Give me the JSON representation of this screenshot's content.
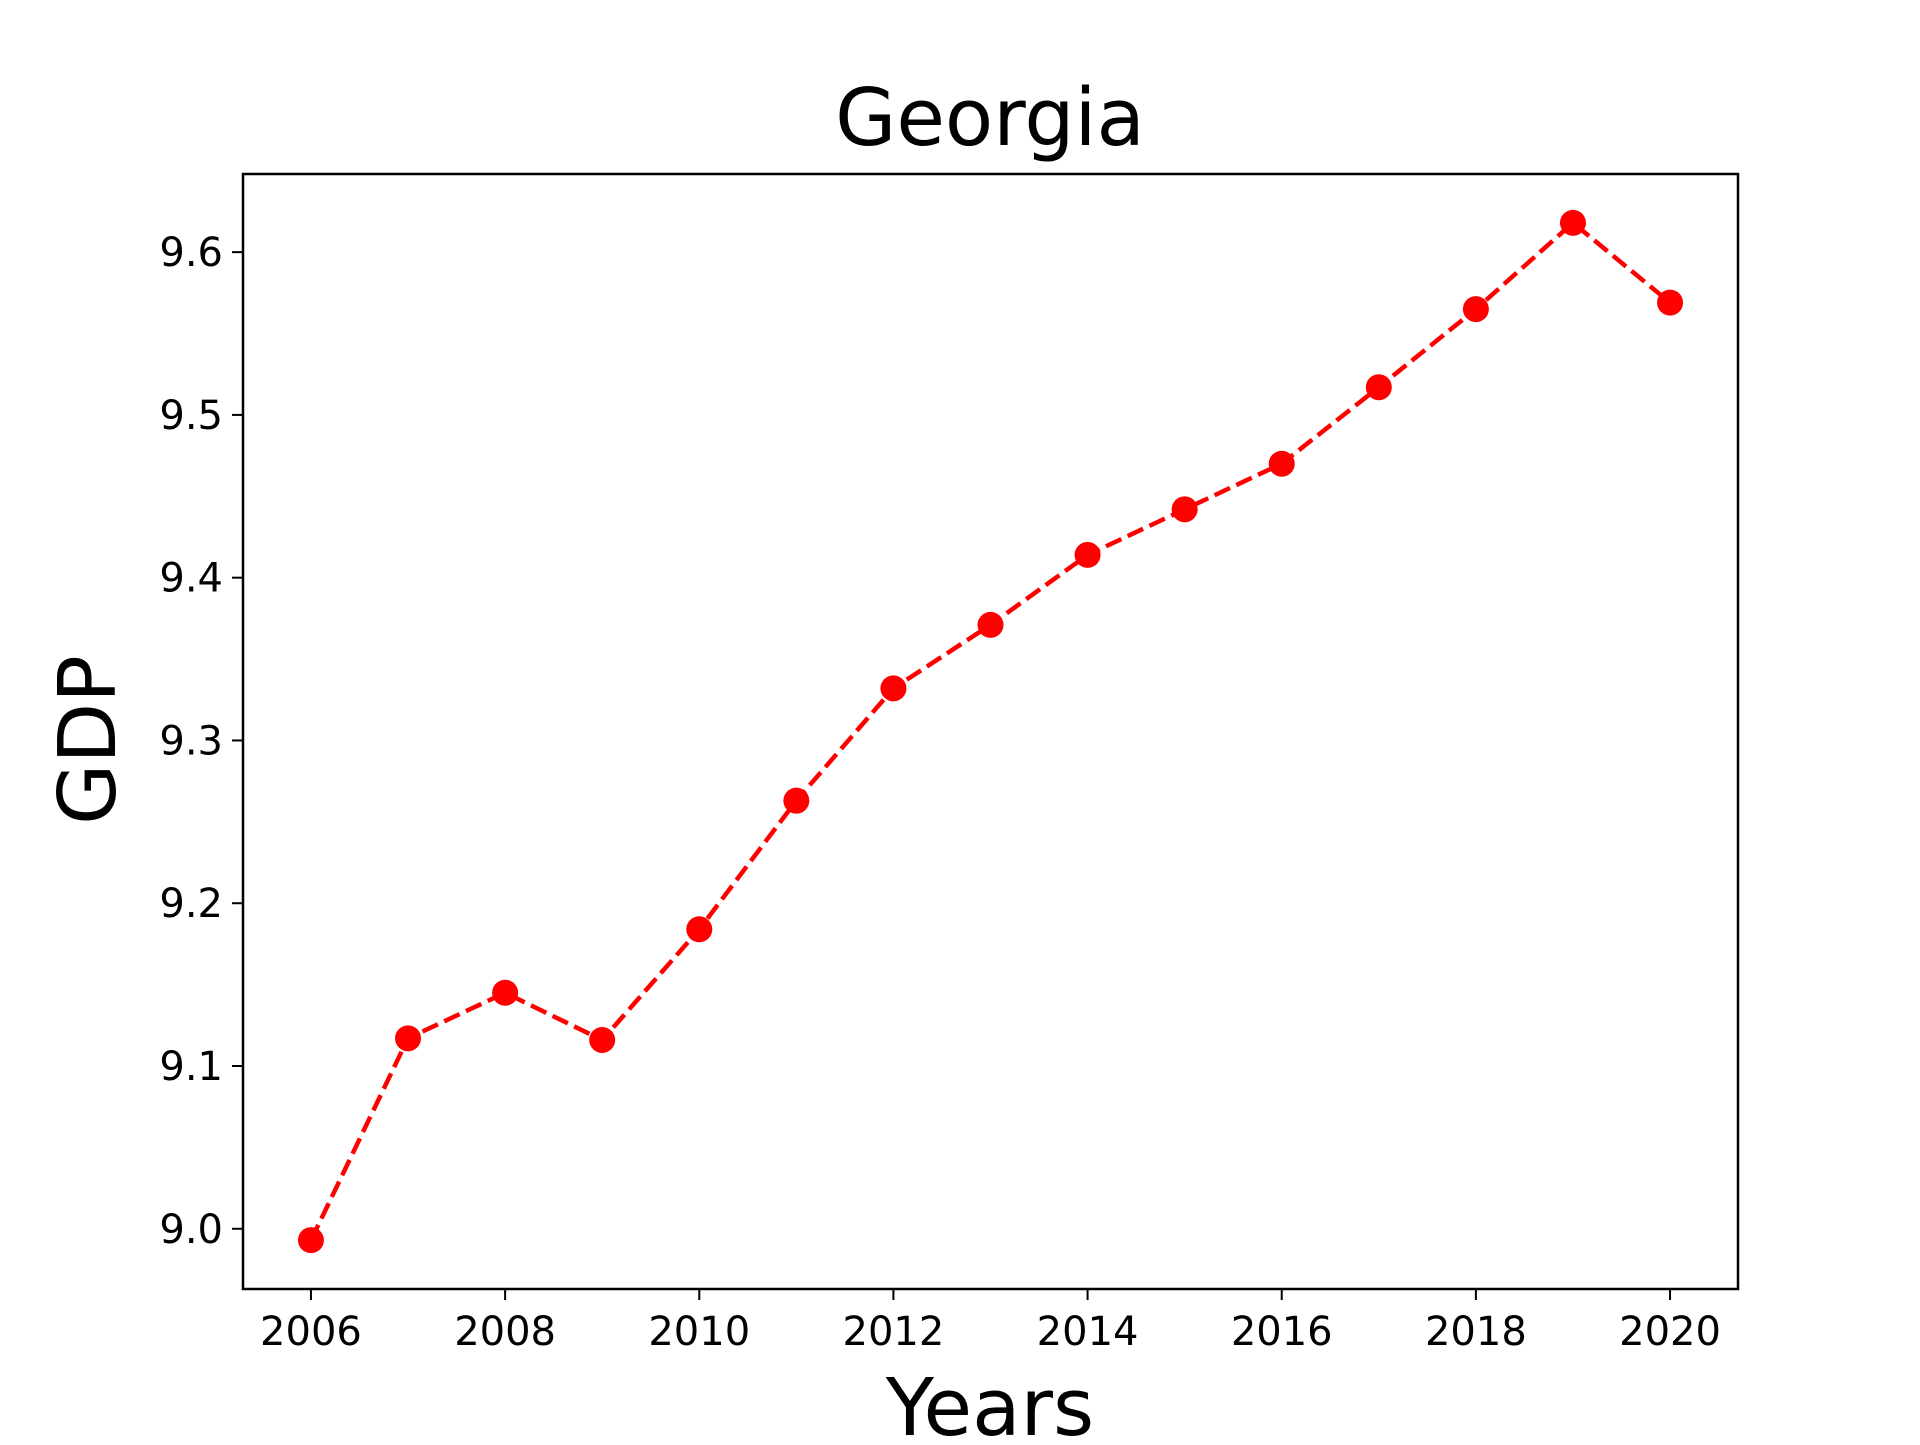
{
  "chart_data": {
    "type": "line",
    "title": "Georgia",
    "xlabel": "Years",
    "ylabel": "GDP",
    "x": [
      2006,
      2007,
      2008,
      2009,
      2010,
      2011,
      2012,
      2013,
      2014,
      2015,
      2016,
      2017,
      2018,
      2019,
      2020
    ],
    "series": [
      {
        "values": [
          8.993,
          9.117,
          9.145,
          9.116,
          9.184,
          9.263,
          9.332,
          9.371,
          9.414,
          9.442,
          9.47,
          9.517,
          9.565,
          9.618,
          9.569
        ],
        "color": "#ff0000",
        "line_style": "dashed",
        "marker": "circle"
      }
    ],
    "xlim": [
      2005.3,
      2020.7
    ],
    "ylim": [
      8.963,
      9.648
    ],
    "xticks": [
      2006,
      2008,
      2010,
      2012,
      2014,
      2016,
      2018,
      2020
    ],
    "xtick_labels": [
      "2006",
      "2008",
      "2010",
      "2012",
      "2014",
      "2016",
      "2018",
      "2020"
    ],
    "yticks": [
      9.0,
      9.1,
      9.2,
      9.3,
      9.4,
      9.5,
      9.6
    ],
    "ytick_labels": [
      "9.0",
      "9.1",
      "9.2",
      "9.3",
      "9.4",
      "9.5",
      "9.6"
    ],
    "grid": false,
    "legend": false
  }
}
